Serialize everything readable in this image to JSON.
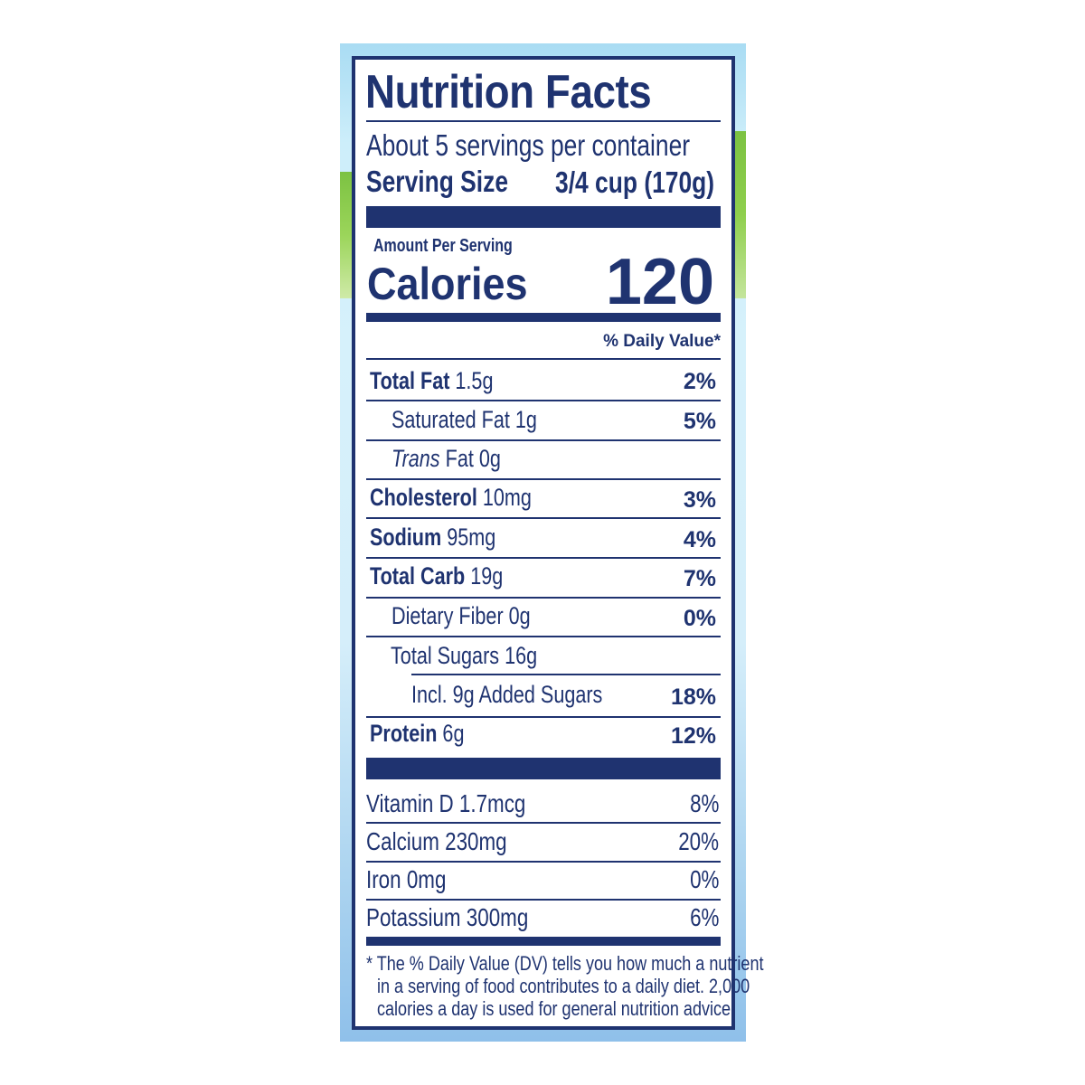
{
  "title": "Nutrition Facts",
  "servings_per_container": "About 5 servings per container",
  "serving_size_label": "Serving Size",
  "serving_size_value": "3/4 cup (170g)",
  "amount_per_serving": "Amount Per Serving",
  "calories_label": "Calories",
  "calories_value": "120",
  "daily_value_header": "% Daily Value*",
  "nutrients": [
    {
      "name": "Total Fat",
      "amount": "1.5g",
      "dv": "2%"
    },
    {
      "name": "Saturated Fat",
      "amount": "1g",
      "dv": "5%"
    },
    {
      "name": "Trans",
      "name_rest": "Fat",
      "amount": "0g",
      "dv": ""
    },
    {
      "name": "Cholesterol",
      "amount": "10mg",
      "dv": "3%"
    },
    {
      "name": "Sodium",
      "amount": "95mg",
      "dv": "4%"
    },
    {
      "name": "Total Carb",
      "amount": "19g",
      "dv": "7%"
    },
    {
      "name": "Dietary Fiber",
      "amount": "0g",
      "dv": "0%"
    },
    {
      "name": "Total Sugars",
      "amount": "16g",
      "dv": ""
    },
    {
      "name": "Incl. 9g Added Sugars",
      "amount": "",
      "dv": "18%"
    },
    {
      "name": "Protein",
      "amount": "6g",
      "dv": "12%"
    }
  ],
  "micronutrients": [
    {
      "name": "Vitamin D 1.7mcg",
      "dv": "8%"
    },
    {
      "name": "Calcium 230mg",
      "dv": "20%"
    },
    {
      "name": "Iron 0mg",
      "dv": "0%"
    },
    {
      "name": "Potassium 300mg",
      "dv": "6%"
    }
  ],
  "footnote": [
    "* The % Daily Value (DV) tells you how much a nutrient",
    "in a serving of food contributes to a daily diet. 2,000",
    "calories a day is used for general nutrition advice."
  ],
  "colors": {
    "ink": "#1f3370",
    "sky": "#cdeefa",
    "grass": "#7cc242"
  }
}
